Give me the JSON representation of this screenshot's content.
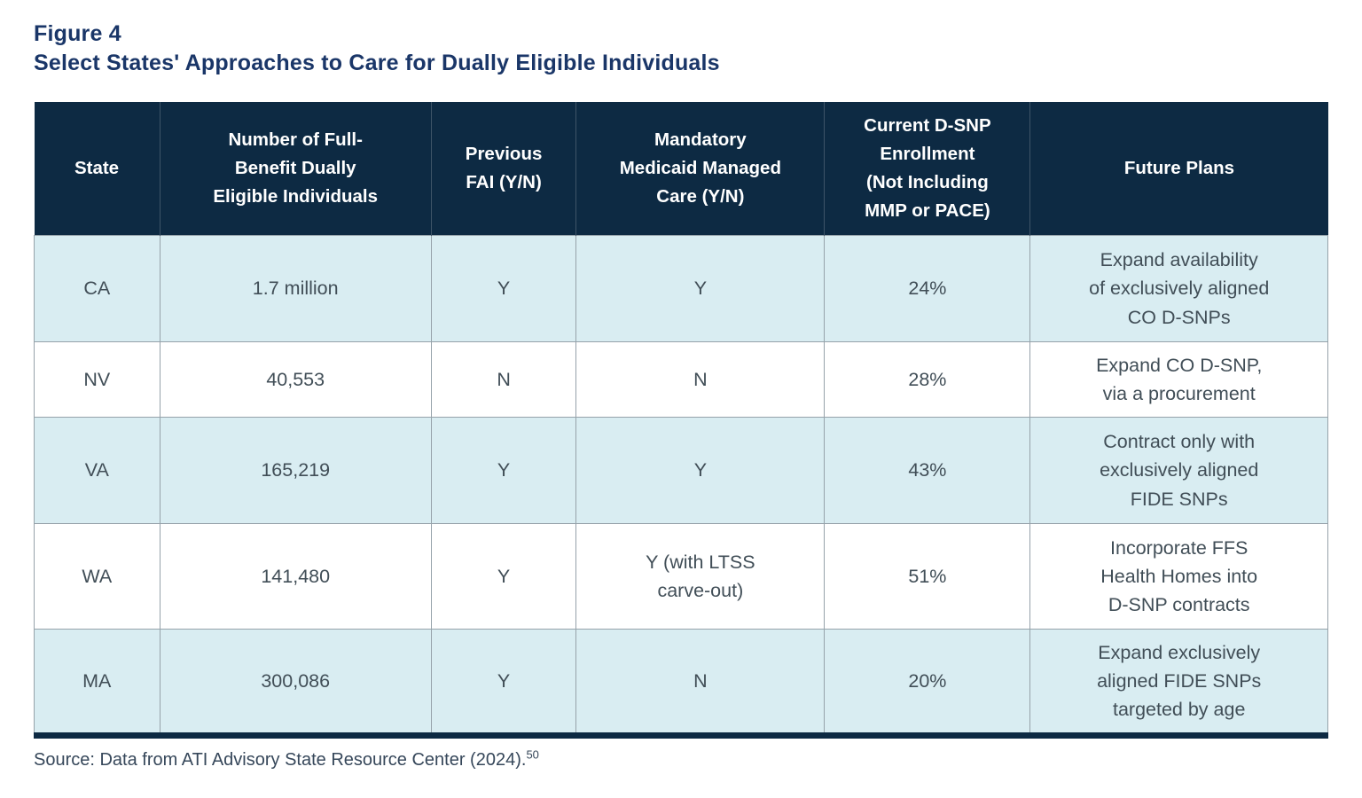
{
  "figure": {
    "label": "Figure 4",
    "title": "Select States' Approaches to Care for Dually Eligible Individuals"
  },
  "table": {
    "columns": {
      "state": "State",
      "full_benefit_count": "Number of Full-\nBenefit Dually\nEligible Individuals",
      "previous_fai": "Previous\nFAI (Y/N)",
      "mandatory_mmc": "Mandatory\nMedicaid Managed\nCare (Y/N)",
      "dsnp_enrollment": "Current D-SNP\nEnrollment\n(Not Including\nMMP or PACE)",
      "future_plans": "Future Plans"
    },
    "rows": [
      {
        "state": "CA",
        "full_benefit_count": "1.7 million",
        "previous_fai": "Y",
        "mandatory_mmc": "Y",
        "dsnp_enrollment": "24%",
        "future_plans": "Expand availability\nof exclusively aligned\nCO D-SNPs"
      },
      {
        "state": "NV",
        "full_benefit_count": "40,553",
        "previous_fai": "N",
        "mandatory_mmc": "N",
        "dsnp_enrollment": "28%",
        "future_plans": "Expand CO D-SNP,\nvia a procurement"
      },
      {
        "state": "VA",
        "full_benefit_count": "165,219",
        "previous_fai": "Y",
        "mandatory_mmc": "Y",
        "dsnp_enrollment": "43%",
        "future_plans": "Contract only with\nexclusively aligned\nFIDE SNPs"
      },
      {
        "state": "WA",
        "full_benefit_count": "141,480",
        "previous_fai": "Y",
        "mandatory_mmc": "Y (with LTSS\ncarve-out)",
        "dsnp_enrollment": "51%",
        "future_plans": "Incorporate FFS\nHealth Homes into\nD-SNP contracts"
      },
      {
        "state": "MA",
        "full_benefit_count": "300,086",
        "previous_fai": "Y",
        "mandatory_mmc": "N",
        "dsnp_enrollment": "20%",
        "future_plans": "Expand exclusively\naligned FIDE SNPs\ntargeted by age"
      }
    ]
  },
  "source": {
    "text": "Source: Data from ATI Advisory State Resource Center (2024).",
    "footnote_marker": "50"
  },
  "colors": {
    "header_background": "#0D2A43",
    "title_navy": "#1A3668",
    "row_alt_blue": "#D9EDF2",
    "row_white": "#FFFFFF",
    "body_text": "#414E57",
    "grid_line": "#96A2AA",
    "bottom_rule": "#0D2A43"
  }
}
